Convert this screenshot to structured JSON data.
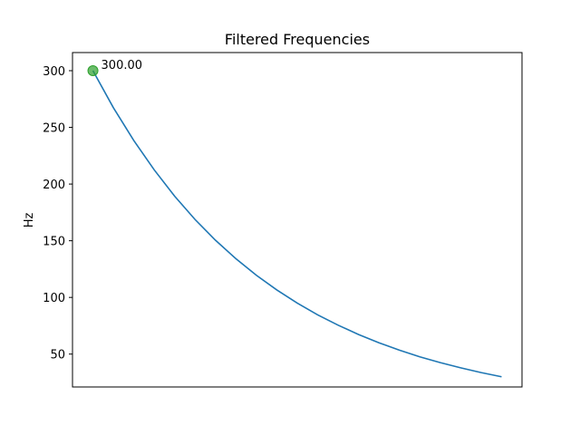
{
  "chart_data": {
    "type": "line",
    "title": "Filtered Frequencies",
    "xlabel": "",
    "ylabel": "Hz",
    "x": [
      0,
      0.05,
      0.1,
      0.15,
      0.2,
      0.25,
      0.3,
      0.35,
      0.4,
      0.45,
      0.5,
      0.55,
      0.6,
      0.65,
      0.7,
      0.75,
      0.8,
      0.85,
      0.9,
      0.95,
      1.0
    ],
    "series": [
      {
        "values": [
          300.0,
          267.4,
          238.4,
          212.5,
          189.3,
          168.7,
          150.4,
          134.1,
          119.5,
          106.6,
          95.0,
          84.6,
          75.5,
          67.3,
          60.0,
          53.5,
          47.6,
          42.5,
          37.9,
          33.7,
          30.0
        ],
        "color": "#1f77b4"
      }
    ],
    "xlim": [
      -0.05,
      1.05
    ],
    "ylim": [
      21,
      316
    ],
    "yticks": [
      50,
      100,
      150,
      200,
      250,
      300
    ],
    "xticks_visible": false,
    "grid": false,
    "marker": {
      "x": 0,
      "y": 300,
      "label": "300.00",
      "color": "#2ca02c"
    }
  }
}
